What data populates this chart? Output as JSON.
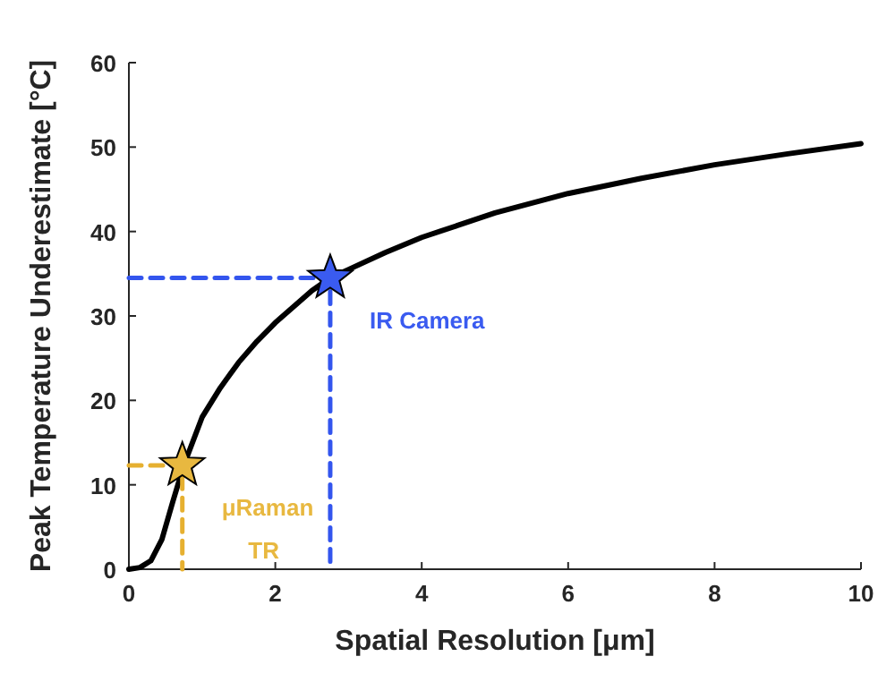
{
  "chart_data": {
    "type": "line",
    "xlabel": "Spatial Resolution [μm]",
    "ylabel": "Peak Temperature Underestimate [°C]",
    "xlim": [
      0,
      10
    ],
    "xticks": [
      0,
      2,
      4,
      6,
      8,
      10
    ],
    "ylim": [
      0,
      60
    ],
    "yticks": [
      0,
      10,
      20,
      30,
      40,
      50,
      60
    ],
    "grid": false,
    "series": [
      {
        "color": "#000000",
        "line_style": "solid",
        "marker": "none",
        "x": [
          0,
          0.15,
          0.3,
          0.45,
          0.6,
          0.75,
          1,
          1.25,
          1.5,
          1.75,
          2,
          2.5,
          2.75,
          3,
          3.5,
          4,
          5,
          6,
          7,
          8,
          9,
          10
        ],
        "values": [
          0,
          0.2,
          1,
          3.5,
          8,
          12.3,
          18,
          21.5,
          24.5,
          27,
          29.2,
          33,
          34.5,
          35.5,
          37.5,
          39.3,
          42.2,
          44.5,
          46.3,
          47.9,
          49.2,
          50.4
        ]
      },
      {
        "color": "#3355ee",
        "line_style": "dashed",
        "marker": "none",
        "x": [
          0,
          2.75,
          2.75
        ],
        "values": [
          34.5,
          34.5,
          0
        ]
      },
      {
        "color": "#e6b030",
        "line_style": "dashed",
        "marker": "none",
        "x": [
          0,
          0.73,
          0.73
        ],
        "values": [
          12.3,
          12.3,
          0
        ]
      },
      {
        "type": "scatter",
        "name": "IR Camera",
        "color": "#3a5bf0",
        "marker": "star",
        "x": [
          2.75
        ],
        "values": [
          34.5
        ]
      },
      {
        "type": "scatter",
        "name": "μRaman\nTR",
        "color": "#e8b840",
        "marker": "star",
        "x": [
          0.73
        ],
        "values": [
          12.3
        ]
      }
    ]
  }
}
